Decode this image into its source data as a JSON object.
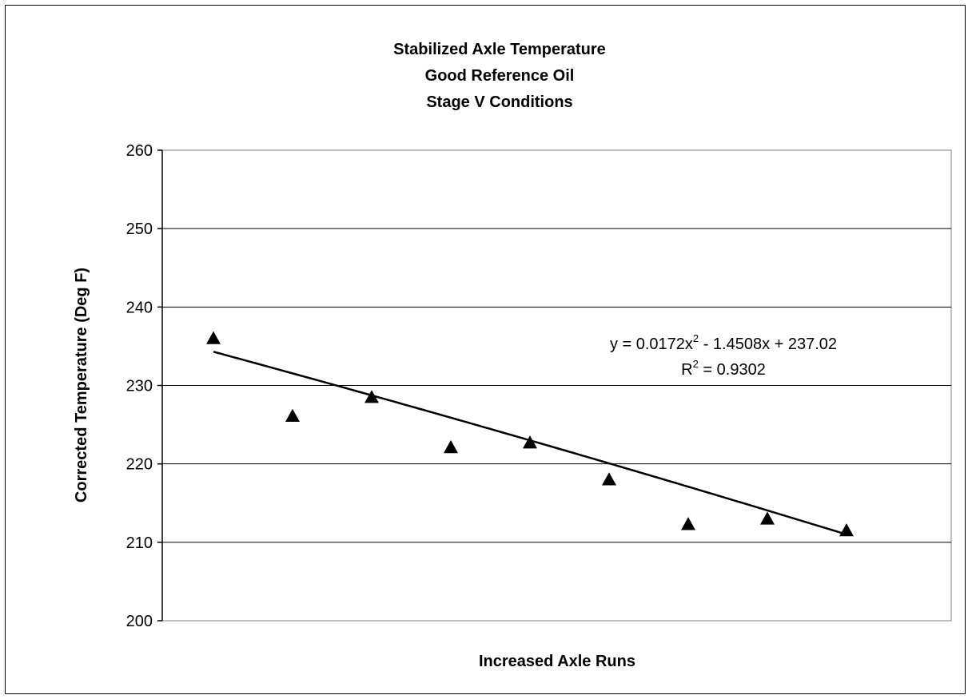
{
  "chart_data": {
    "type": "scatter",
    "title_lines": [
      "Stabilized Axle Temperature",
      "Good Reference Oil",
      "Stage V Conditions"
    ],
    "xlabel": "Increased Axle Runs",
    "ylabel": "Corrected Temperature (Deg F)",
    "ylim": [
      200,
      260
    ],
    "yticks": [
      "200",
      "210",
      "220",
      "230",
      "240",
      "250",
      "260"
    ],
    "grid": true,
    "marker": "triangle",
    "series": [
      {
        "x": [
          1,
          2,
          3,
          4,
          5,
          6,
          7,
          8,
          9
        ],
        "y": [
          236.0,
          226.1,
          228.5,
          222.1,
          222.7,
          218.0,
          212.3,
          213.0,
          211.5
        ]
      }
    ],
    "trendline": {
      "type": "polynomial",
      "order": 2,
      "coefficients": [
        0.0172,
        -1.4508,
        237.02
      ],
      "equation_parts": [
        "y = 0.0172x",
        "2",
        " - 1.4508x + 237.02"
      ],
      "r2_parts": [
        "R",
        "2",
        " = 0.9302"
      ]
    },
    "colors": {
      "marker": "#000000",
      "trendline": "#000000",
      "grid": "#000000"
    }
  }
}
